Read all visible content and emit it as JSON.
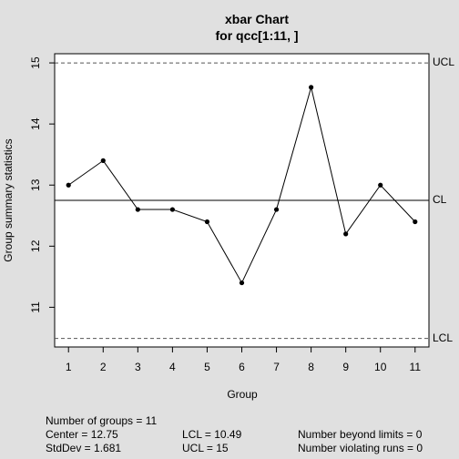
{
  "chart_data": {
    "type": "line",
    "title_line1": "xbar Chart",
    "title_line2": "for qcc[1:11, ]",
    "xlabel": "Group",
    "ylabel": "Group summary statistics",
    "x": [
      1,
      2,
      3,
      4,
      5,
      6,
      7,
      8,
      9,
      10,
      11
    ],
    "values": [
      13.0,
      13.4,
      12.6,
      12.6,
      12.4,
      11.4,
      12.6,
      14.6,
      12.2,
      13.0,
      12.4
    ],
    "xlim": [
      0.6,
      11.4
    ],
    "ylim": [
      10.35,
      15.15
    ],
    "yticks": [
      11,
      12,
      13,
      14,
      15
    ],
    "center": 12.75,
    "ucl": 15,
    "lcl": 10.49,
    "limit_labels": {
      "ucl": "UCL",
      "cl": "CL",
      "lcl": "LCL"
    },
    "grid": false
  },
  "stats": {
    "groups": "Number of groups = 11",
    "center": "Center = 12.75",
    "stddev": "StdDev = 1.681",
    "lcl": "LCL = 10.49",
    "ucl": "UCL = 15",
    "beyond": "Number beyond limits = 0",
    "violating": "Number violating runs = 0"
  }
}
